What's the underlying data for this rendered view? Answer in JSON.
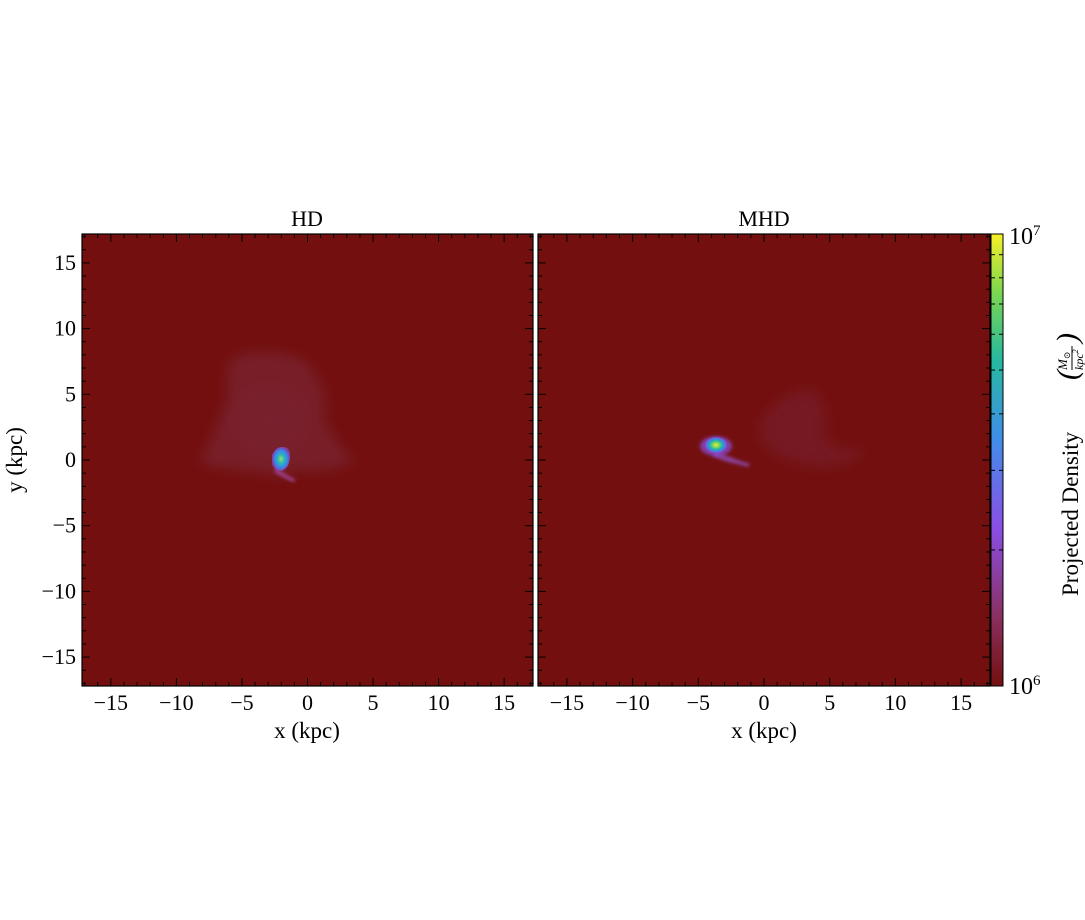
{
  "chart_data": {
    "type": "heatmap",
    "colormap": "viridis-like (dark red to yellow)",
    "background_color": "#73100f",
    "panels": [
      {
        "title": "HD",
        "xlabel": "x (kpc)",
        "ylabel": "y (kpc)",
        "xlim": [
          -17.2,
          17.2
        ],
        "ylim": [
          -17.2,
          17.2
        ],
        "xticks": [
          -15,
          -10,
          -5,
          0,
          5,
          10,
          15
        ],
        "yticks": [
          -15,
          -10,
          -5,
          0,
          5,
          10,
          15
        ],
        "features": [
          {
            "kind": "diffuse_halo",
            "x": -3.5,
            "y": 4.0,
            "density": 1250000.0
          },
          {
            "kind": "core",
            "x": -2.0,
            "y": 0.2,
            "density": 5500000.0
          },
          {
            "kind": "tail",
            "x": -1.5,
            "y": -1.3,
            "density": 1600000.0
          }
        ]
      },
      {
        "title": "MHD",
        "xlabel": "x (kpc)",
        "ylabel": "",
        "xlim": [
          -17.2,
          17.2
        ],
        "ylim": [
          -17.2,
          17.2
        ],
        "xticks": [
          -15,
          -10,
          -5,
          0,
          5,
          10,
          15
        ],
        "yticks": [],
        "features": [
          {
            "kind": "diffuse_halo",
            "x": 1.5,
            "y": 1.5,
            "density": 1150000.0
          },
          {
            "kind": "core",
            "x": -3.8,
            "y": 1.1,
            "density": 8000000.0
          },
          {
            "kind": "tail",
            "x": -2.5,
            "y": -0.2,
            "density": 2000000.0
          }
        ]
      }
    ],
    "colorbar": {
      "label": "Projected Density",
      "unit_numerator": "M",
      "unit_subscript": "⊙",
      "unit_denominator": "kpc",
      "unit_power": "2",
      "scale": "log",
      "range": [
        1000000.0,
        10000000.0
      ],
      "ticks": [
        {
          "base": "10",
          "exp": "6"
        },
        {
          "base": "10",
          "exp": "7"
        }
      ]
    }
  }
}
